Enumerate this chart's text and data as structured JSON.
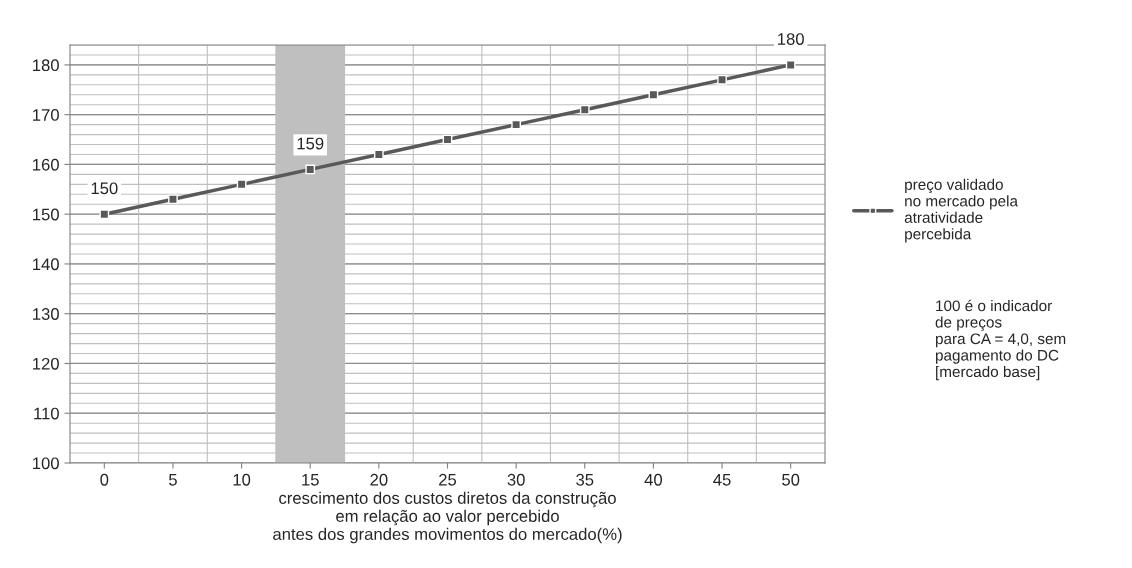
{
  "chart_data": {
    "type": "line",
    "xlabel": "crescimento dos custos diretos da construção\nem relação ao valor percebido\nantes dos grandes movimentos do mercado(%)",
    "categories": [
      "0",
      "5",
      "10",
      "15",
      "20",
      "25",
      "30",
      "35",
      "40",
      "45",
      "50"
    ],
    "series": [
      {
        "name": "preço validado\nno mercado pela\natratividade\npercebida",
        "color": "#595959",
        "values": [
          150,
          153,
          156,
          159,
          162,
          165,
          168,
          171,
          174,
          177,
          180
        ],
        "value_labels": [
          "150",
          null,
          null,
          "159",
          null,
          null,
          null,
          null,
          null,
          null,
          "180"
        ]
      }
    ],
    "ylim": [
      100,
      184
    ],
    "yticks": [
      100,
      110,
      120,
      130,
      140,
      150,
      160,
      170,
      180
    ],
    "bands": [
      {
        "axis": "x",
        "from": "15",
        "to": "15",
        "color": "#bfbfbf"
      }
    ],
    "annotations": [
      "100 é o indicador\nde preços\npara CA = 4,0, sem\npagamento do DC\n[mercado base]"
    ],
    "grid": true,
    "legend": "right",
    "marker": "square",
    "line_style": "solid"
  }
}
